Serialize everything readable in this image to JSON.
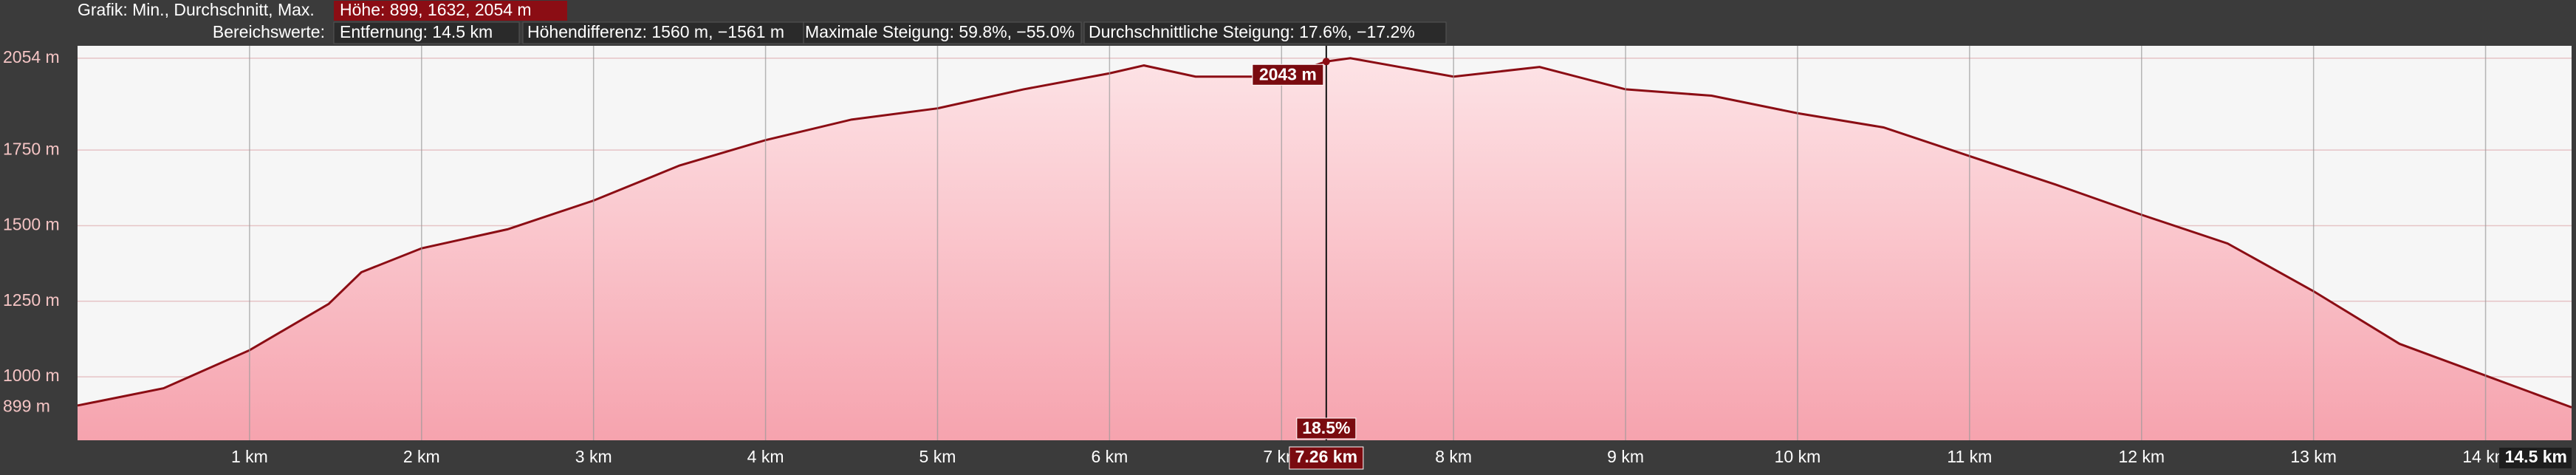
{
  "header": {
    "graph_label": "Grafik: Min., Durchschnitt, Max.",
    "elevation": "Höhe: 899, 1632, 2054 m",
    "range_label": "Bereichswerte:",
    "distance": "Entfernung: 14.5 km",
    "elevation_difference": "Höhendifferenz: 1560 m, −1561 m",
    "max_grade": "Maximale Steigung: 59.8%, −55.0%",
    "avg_grade": "Durchschnittliche Steigung: 17.6%, −17.2%"
  },
  "chart_data": {
    "type": "area",
    "color": "#8b0d14",
    "x": [
      0,
      0.5,
      1.0,
      1.46,
      1.65,
      2.0,
      2.5,
      3.0,
      3.5,
      4.0,
      4.5,
      5.0,
      5.5,
      6.0,
      6.2,
      6.5,
      7.0,
      7.26,
      7.4,
      8.0,
      8.5,
      9.0,
      9.5,
      10.0,
      10.5,
      11.0,
      11.5,
      12.0,
      12.5,
      13.0,
      13.5,
      14.0,
      14.5
    ],
    "values": [
      905,
      962,
      1088,
      1241,
      1346,
      1425,
      1488,
      1583,
      1699,
      1783,
      1851,
      1888,
      1951,
      2004,
      2030,
      1993,
      1993,
      2043,
      2054,
      1993,
      2025,
      1951,
      1930,
      1872,
      1825,
      1730,
      1636,
      1536,
      1441,
      1283,
      1109,
      1004,
      899
    ],
    "xlim": [
      0,
      14.5
    ],
    "ylim": [
      790,
      2095
    ],
    "xticks": [
      {
        "value": 1,
        "label": "1 km"
      },
      {
        "value": 2,
        "label": "2 km"
      },
      {
        "value": 3,
        "label": "3 km"
      },
      {
        "value": 4,
        "label": "4 km"
      },
      {
        "value": 5,
        "label": "5 km"
      },
      {
        "value": 6,
        "label": "6 km"
      },
      {
        "value": 7,
        "label": "7 km"
      },
      {
        "value": 8,
        "label": "8 km"
      },
      {
        "value": 9,
        "label": "9 km"
      },
      {
        "value": 10,
        "label": "10 km"
      },
      {
        "value": 11,
        "label": "11 km"
      },
      {
        "value": 12,
        "label": "12 km"
      },
      {
        "value": 13,
        "label": "13 km"
      },
      {
        "value": 14,
        "label": "14 km"
      },
      {
        "value": 14.5,
        "label": "14.5 km"
      }
    ],
    "yticks": [
      {
        "value": 899,
        "label": "899 m"
      },
      {
        "value": 1000,
        "label": "1000 m"
      },
      {
        "value": 1250,
        "label": "1250 m"
      },
      {
        "value": 1500,
        "label": "1500 m"
      },
      {
        "value": 1750,
        "label": "1750 m"
      },
      {
        "value": 2054,
        "label": "2054 m"
      }
    ],
    "cursor": {
      "x": 7.26,
      "x_label": "7.26 km",
      "value": 2043,
      "value_label": "2043 m",
      "grade_label": "18.5%"
    }
  }
}
